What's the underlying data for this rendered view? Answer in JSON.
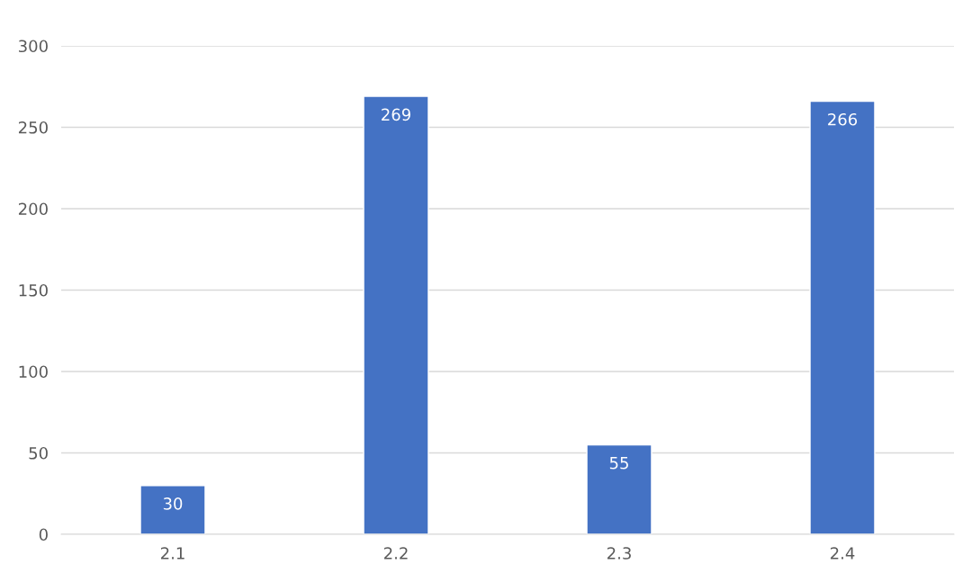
{
  "chart_data": {
    "type": "bar",
    "categories": [
      "2.1",
      "2.2",
      "2.3",
      "2.4"
    ],
    "values": [
      30,
      269,
      55,
      266
    ],
    "color": "#4472c4",
    "ylim": [
      0,
      300
    ],
    "yticks": [
      0,
      50,
      100,
      150,
      200,
      250,
      300
    ],
    "grid": "y",
    "data_labels": true,
    "legend": false
  }
}
